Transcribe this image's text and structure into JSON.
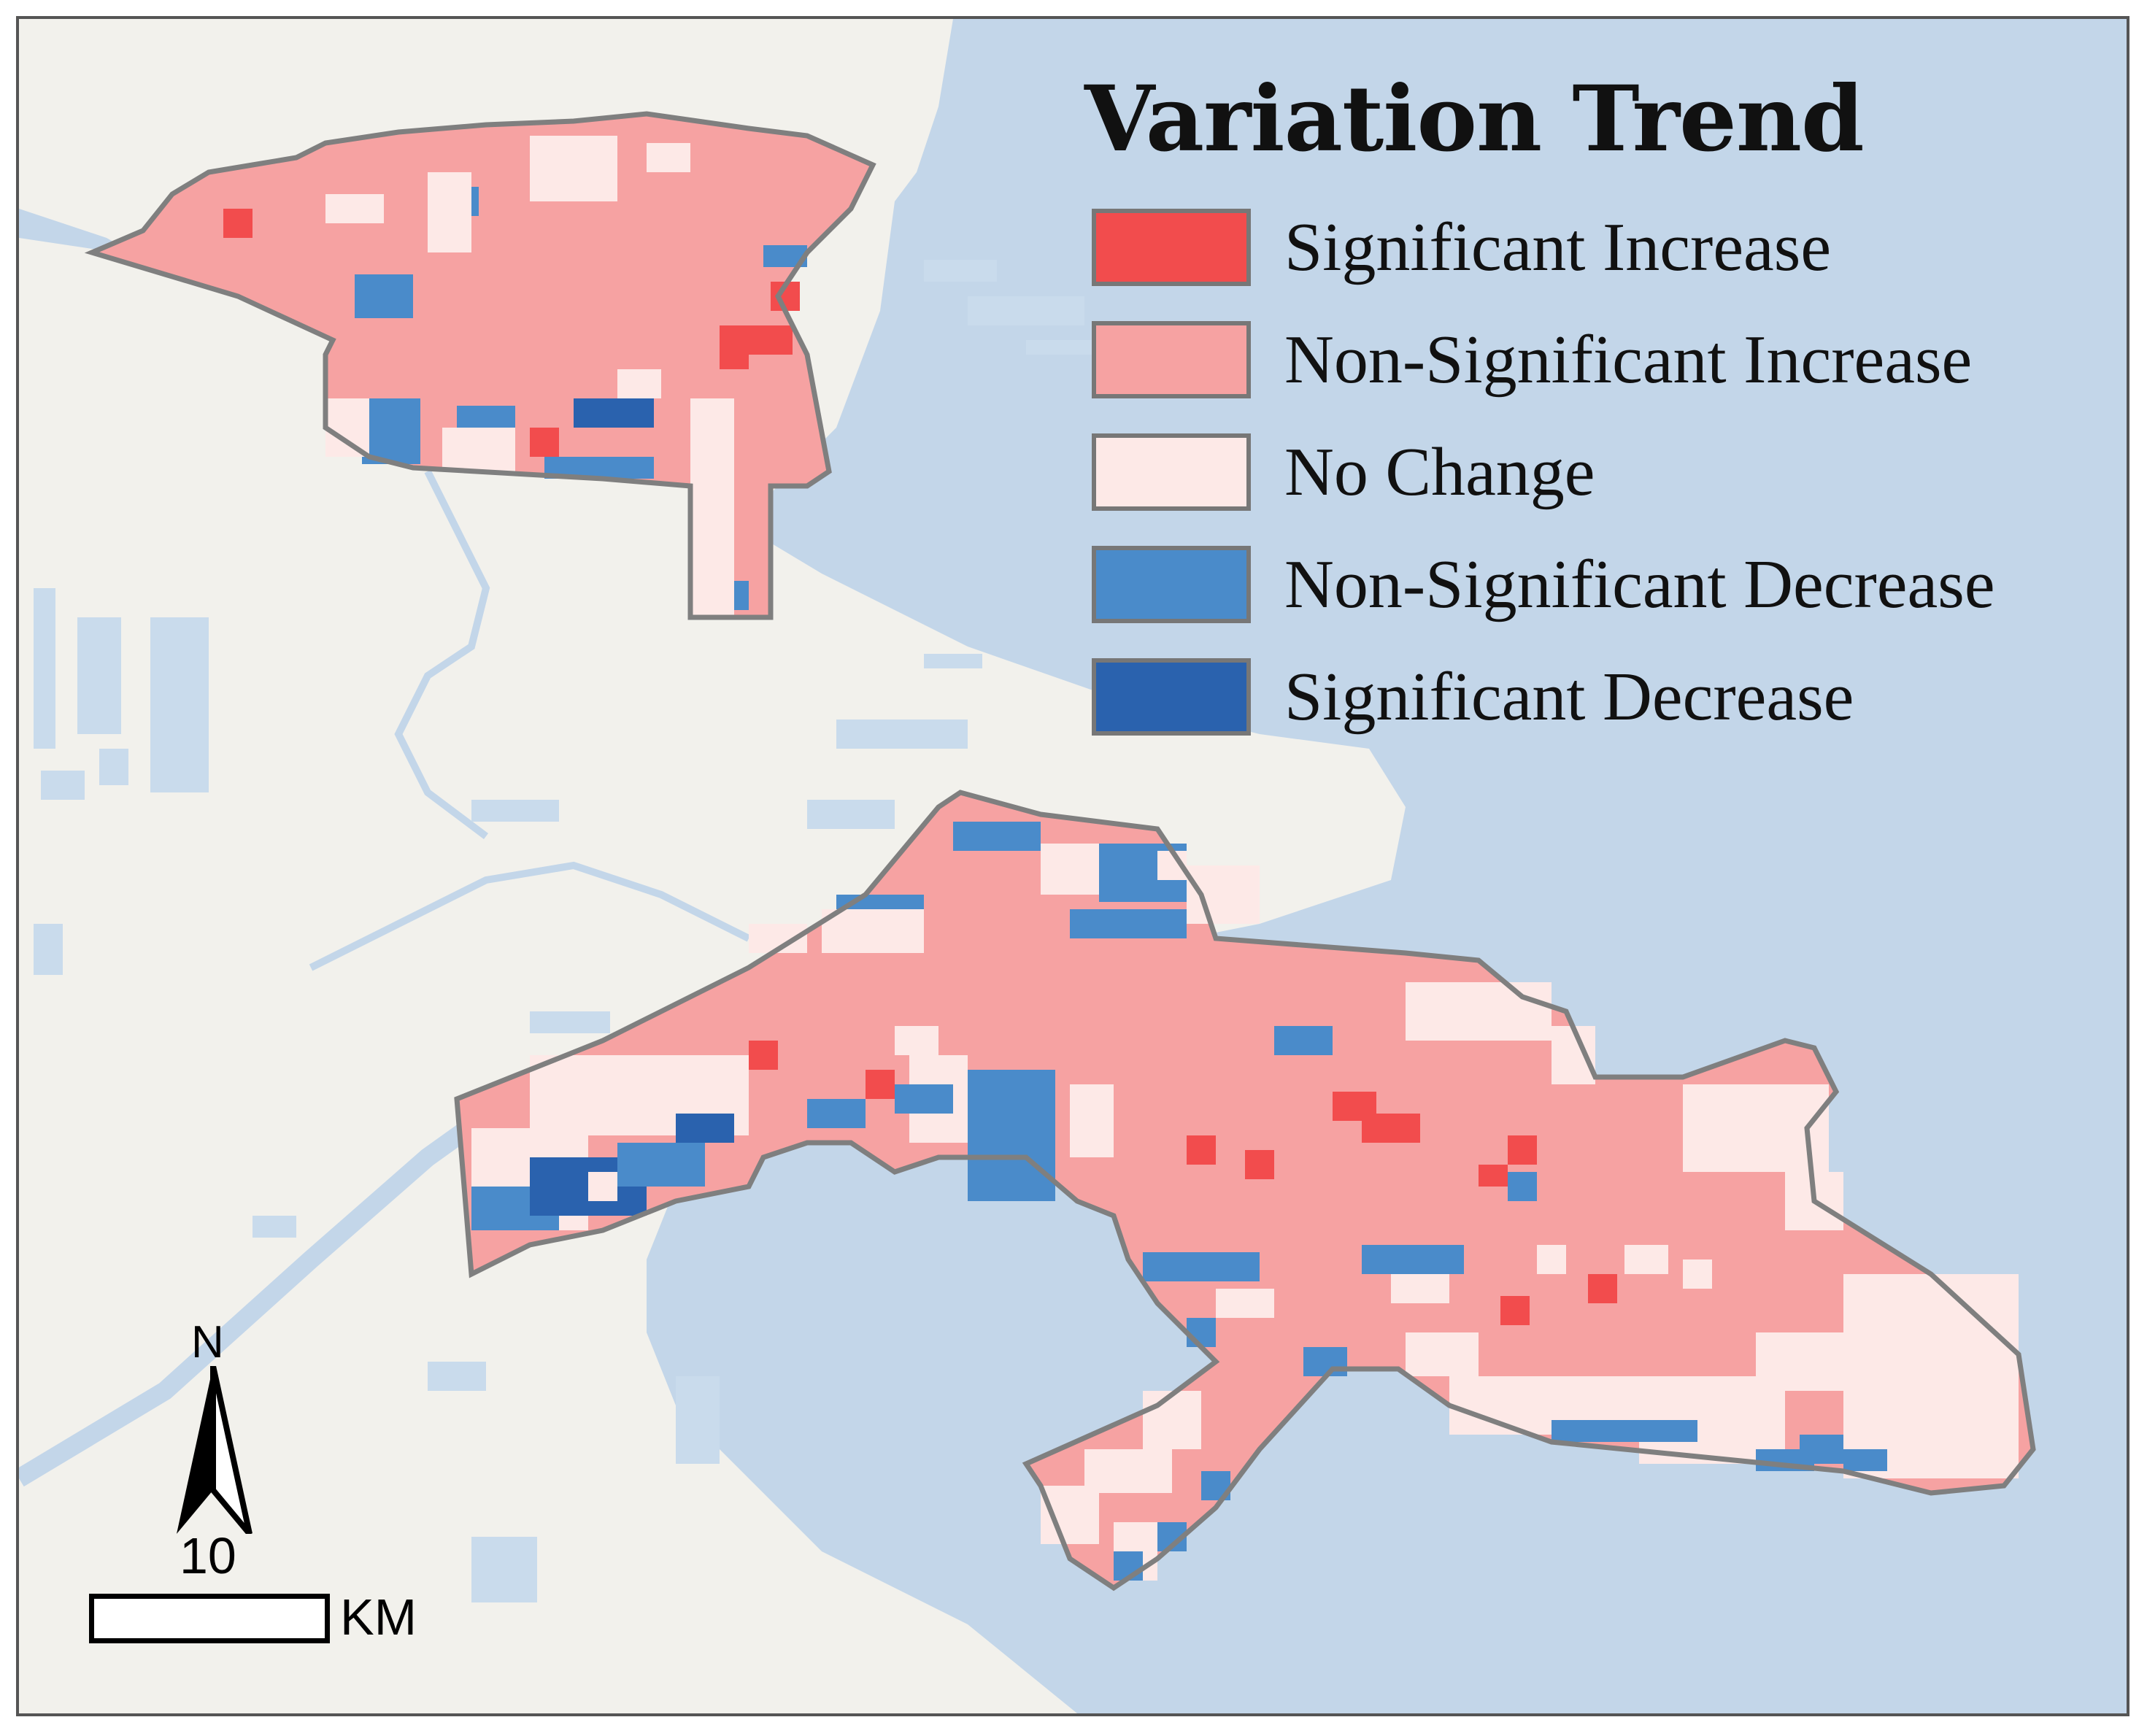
{
  "legend": {
    "title": "Variation Trend",
    "items": [
      {
        "label": "Significant Increase",
        "color": "#f24c4d"
      },
      {
        "label": "Non-Significant Increase",
        "color": "#f6a2a2"
      },
      {
        "label": "No Change",
        "color": "#fde9e7"
      },
      {
        "label": "Non-Significant Decrease",
        "color": "#4a8bca"
      },
      {
        "label": "Significant Decrease",
        "color": "#2a62ae"
      }
    ]
  },
  "north_arrow": {
    "label": "N"
  },
  "scale_bar": {
    "value": "10",
    "unit": "KM"
  },
  "colors": {
    "water": "#c3d6e9",
    "land": "#f2f1ec",
    "study_area_outline": "#7f7f7f"
  }
}
